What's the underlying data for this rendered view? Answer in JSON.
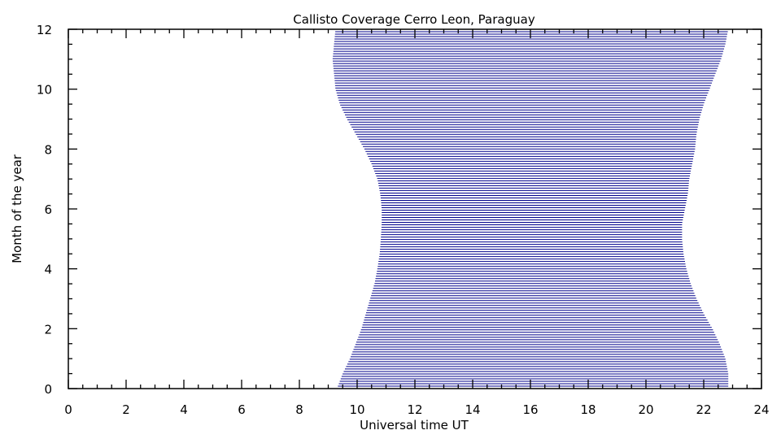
{
  "chart_data": {
    "type": "area",
    "title": "Callisto Coverage Cerro Leon, Paraguay",
    "xlabel": "Universal time UT",
    "ylabel": "Month of the year",
    "xlim": [
      0,
      24
    ],
    "ylim": [
      0,
      12
    ],
    "x_ticks": [
      "0",
      "2",
      "4",
      "6",
      "8",
      "10",
      "12",
      "14",
      "16",
      "18",
      "20",
      "22",
      "24"
    ],
    "y_ticks": [
      "0",
      "2",
      "4",
      "6",
      "8",
      "10",
      "12"
    ],
    "fill_color": "#00008b",
    "grid": false,
    "series": [
      {
        "month": [
          0,
          0.5,
          1,
          1.5,
          2,
          2.5,
          3,
          3.5,
          4,
          4.5,
          5,
          5.5,
          6,
          6.5,
          7,
          7.5,
          8,
          8.5,
          9,
          9.5,
          10,
          10.5,
          11,
          11.5,
          12
        ],
        "start_ut": [
          9.3,
          9.5,
          9.75,
          9.95,
          10.15,
          10.3,
          10.45,
          10.6,
          10.7,
          10.78,
          10.82,
          10.85,
          10.85,
          10.8,
          10.7,
          10.5,
          10.25,
          9.95,
          9.65,
          9.4,
          9.25,
          9.2,
          9.15,
          9.2,
          9.25
        ],
        "end_ut": [
          22.85,
          22.85,
          22.75,
          22.55,
          22.3,
          22.0,
          21.75,
          21.55,
          21.4,
          21.3,
          21.25,
          21.25,
          21.35,
          21.45,
          21.5,
          21.6,
          21.7,
          21.75,
          21.85,
          22.0,
          22.2,
          22.4,
          22.6,
          22.75,
          22.85
        ]
      }
    ]
  }
}
